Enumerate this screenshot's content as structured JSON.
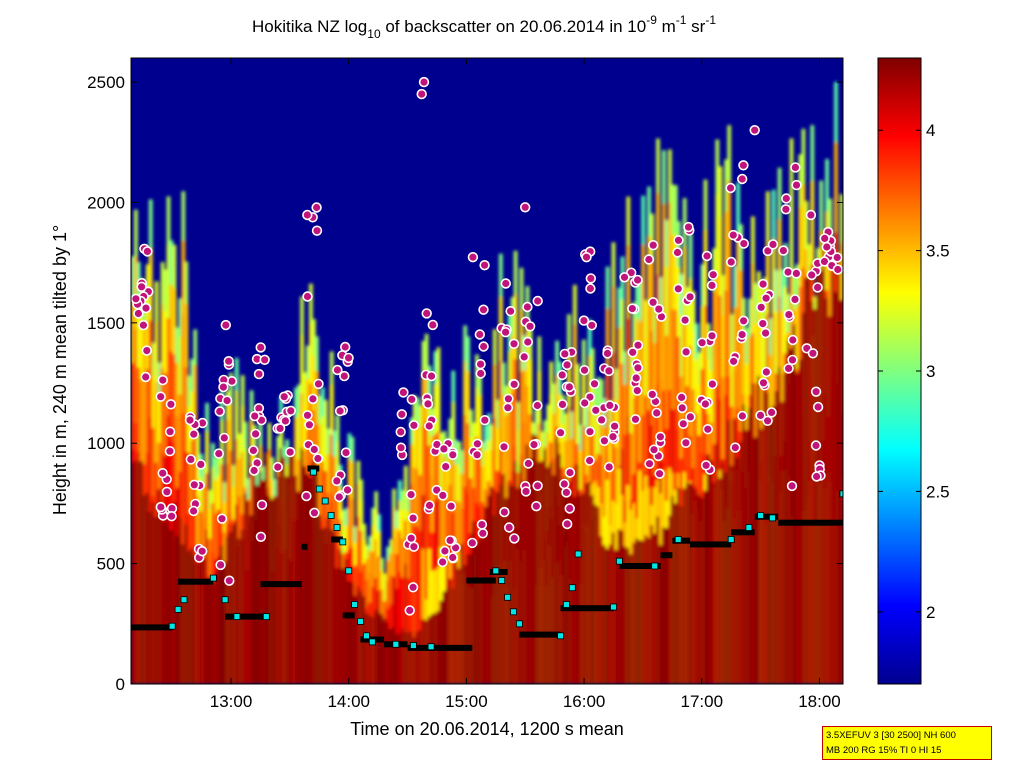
{
  "chart_data": {
    "type": "heatmap",
    "title_parts": {
      "t1": "Hokitika NZ log",
      "t2": "10",
      "t3": " of backscatter on 20.06.2014 in 10",
      "t4": "-9",
      "t5": " m",
      "t6": "-1",
      "t7": " sr",
      "t8": "-1"
    },
    "xlabel": "Time on 20.06.2014, 1200 s mean",
    "ylabel": "Height in m, 240 m mean tilted by 1°",
    "x_ticks": [
      "13:00",
      "14:00",
      "15:00",
      "16:00",
      "17:00",
      "18:00"
    ],
    "x_tick_hours": [
      13,
      14,
      15,
      16,
      17,
      18
    ],
    "xlim_hours": [
      12.15,
      18.2
    ],
    "y_ticks": [
      "0",
      "500",
      "1000",
      "1500",
      "2000",
      "2500"
    ],
    "y_tick_values": [
      0,
      500,
      1000,
      1500,
      2000,
      2500
    ],
    "ylim": [
      0,
      2600
    ],
    "colorbar": {
      "ticks": [
        "2",
        "2.5",
        "3",
        "3.5",
        "4"
      ],
      "tick_values": [
        2,
        2.5,
        3,
        3.5,
        4
      ],
      "clim": [
        1.7,
        4.3
      ],
      "colormap": "jet"
    },
    "mixing_layer_black": [
      {
        "t0": 12.15,
        "t1": 12.5,
        "h": 235
      },
      {
        "t0": 12.55,
        "t1": 12.85,
        "h": 425
      },
      {
        "t0": 12.95,
        "t1": 13.3,
        "h": 280
      },
      {
        "t0": 13.25,
        "t1": 13.6,
        "h": 415
      },
      {
        "t0": 13.6,
        "t1": 13.65,
        "h": 570
      },
      {
        "t0": 13.65,
        "t1": 13.75,
        "h": 895
      },
      {
        "t0": 13.85,
        "t1": 13.95,
        "h": 600
      },
      {
        "t0": 13.95,
        "t1": 14.05,
        "h": 285
      },
      {
        "t0": 14.1,
        "t1": 14.3,
        "h": 185
      },
      {
        "t0": 14.3,
        "t1": 14.5,
        "h": 165
      },
      {
        "t0": 14.5,
        "t1": 15.05,
        "h": 150
      },
      {
        "t0": 15.0,
        "t1": 15.25,
        "h": 430
      },
      {
        "t0": 15.2,
        "t1": 15.35,
        "h": 465
      },
      {
        "t0": 15.45,
        "t1": 15.8,
        "h": 205
      },
      {
        "t0": 15.8,
        "t1": 16.25,
        "h": 315
      },
      {
        "t0": 16.3,
        "t1": 16.65,
        "h": 490
      },
      {
        "t0": 16.65,
        "t1": 16.75,
        "h": 535
      },
      {
        "t0": 16.75,
        "t1": 16.9,
        "h": 595
      },
      {
        "t0": 16.9,
        "t1": 17.25,
        "h": 580
      },
      {
        "t0": 17.25,
        "t1": 17.45,
        "h": 630
      },
      {
        "t0": 17.45,
        "t1": 17.65,
        "h": 695
      },
      {
        "t0": 17.65,
        "t1": 18.2,
        "h": 670
      }
    ],
    "cyan_markers": [
      [
        12.5,
        240
      ],
      [
        12.55,
        310
      ],
      [
        12.6,
        350
      ],
      [
        12.85,
        440
      ],
      [
        12.95,
        350
      ],
      [
        13.05,
        280
      ],
      [
        13.3,
        280
      ],
      [
        13.7,
        880
      ],
      [
        13.75,
        810
      ],
      [
        13.8,
        760
      ],
      [
        13.85,
        700
      ],
      [
        13.9,
        650
      ],
      [
        13.95,
        590
      ],
      [
        14.0,
        470
      ],
      [
        14.05,
        330
      ],
      [
        14.1,
        260
      ],
      [
        14.15,
        200
      ],
      [
        14.2,
        175
      ],
      [
        14.4,
        165
      ],
      [
        14.55,
        160
      ],
      [
        14.7,
        155
      ],
      [
        15.25,
        470
      ],
      [
        15.3,
        430
      ],
      [
        15.35,
        360
      ],
      [
        15.4,
        300
      ],
      [
        15.45,
        250
      ],
      [
        15.8,
        200
      ],
      [
        15.85,
        330
      ],
      [
        15.9,
        400
      ],
      [
        15.95,
        540
      ],
      [
        16.25,
        320
      ],
      [
        16.3,
        510
      ],
      [
        16.6,
        490
      ],
      [
        16.8,
        600
      ],
      [
        17.25,
        600
      ],
      [
        17.4,
        650
      ],
      [
        17.5,
        700
      ],
      [
        17.6,
        690
      ],
      [
        18.2,
        790
      ]
    ]
  }
}
